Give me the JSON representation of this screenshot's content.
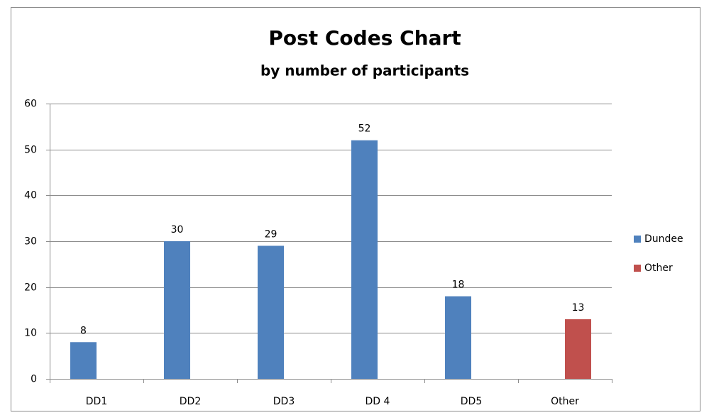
{
  "chart_data": {
    "type": "bar",
    "title": "Post Codes Chart",
    "subtitle": "by number of participants",
    "categories": [
      "DD1",
      "DD2",
      "DD3",
      "DD 4",
      "DD5",
      "Other"
    ],
    "series": [
      {
        "name": "Dundee",
        "color": "#4f81bd",
        "values": [
          8,
          30,
          29,
          52,
          18,
          null
        ]
      },
      {
        "name": "Other",
        "color": "#c0504d",
        "values": [
          null,
          null,
          null,
          null,
          null,
          13
        ]
      }
    ],
    "ylim": [
      0,
      60
    ],
    "yticks": [
      0,
      10,
      20,
      30,
      40,
      50,
      60
    ],
    "grid": true,
    "legend": "right"
  }
}
